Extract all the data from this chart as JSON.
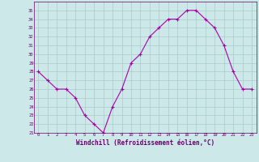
{
  "x": [
    0,
    1,
    2,
    3,
    4,
    5,
    6,
    7,
    8,
    9,
    10,
    11,
    12,
    13,
    14,
    15,
    16,
    17,
    18,
    19,
    20,
    21,
    22,
    23
  ],
  "y": [
    28,
    27,
    26,
    26,
    25,
    23,
    22,
    21,
    24,
    26,
    29,
    30,
    32,
    33,
    34,
    34,
    35,
    35,
    34,
    33,
    31,
    28,
    26,
    26
  ],
  "ylim": [
    21,
    36
  ],
  "yticks": [
    21,
    22,
    23,
    24,
    25,
    26,
    27,
    28,
    29,
    30,
    31,
    32,
    33,
    34,
    35
  ],
  "xticks": [
    0,
    1,
    2,
    3,
    4,
    5,
    6,
    7,
    8,
    9,
    10,
    11,
    12,
    13,
    14,
    15,
    16,
    17,
    18,
    19,
    20,
    21,
    22,
    23
  ],
  "xlabel": "Windchill (Refroidissement éolien,°C)",
  "line_color": "#aa00aa",
  "marker": "+",
  "bg_color": "#cce8e8",
  "grid_color": "#aacccc",
  "tick_color": "#660066",
  "xlabel_color": "#660066",
  "axis_color": "#660066"
}
